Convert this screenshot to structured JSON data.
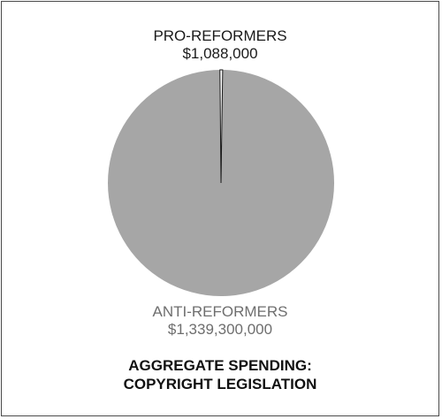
{
  "chart_data": {
    "type": "pie",
    "title_lines": [
      "AGGREGATE SPENDING:",
      "COPYRIGHT LEGISLATION"
    ],
    "slices": [
      {
        "label": "PRO-REFORMERS",
        "value": 1088000,
        "value_label": "$1,088,000",
        "color": "#ffffff",
        "stroke": "#1a1a1a"
      },
      {
        "label": "ANTI-REFORMERS",
        "value": 1339300000,
        "value_label": "$1,339,300,000",
        "color": "#a6a6a6",
        "stroke": "#a6a6a6"
      }
    ]
  }
}
